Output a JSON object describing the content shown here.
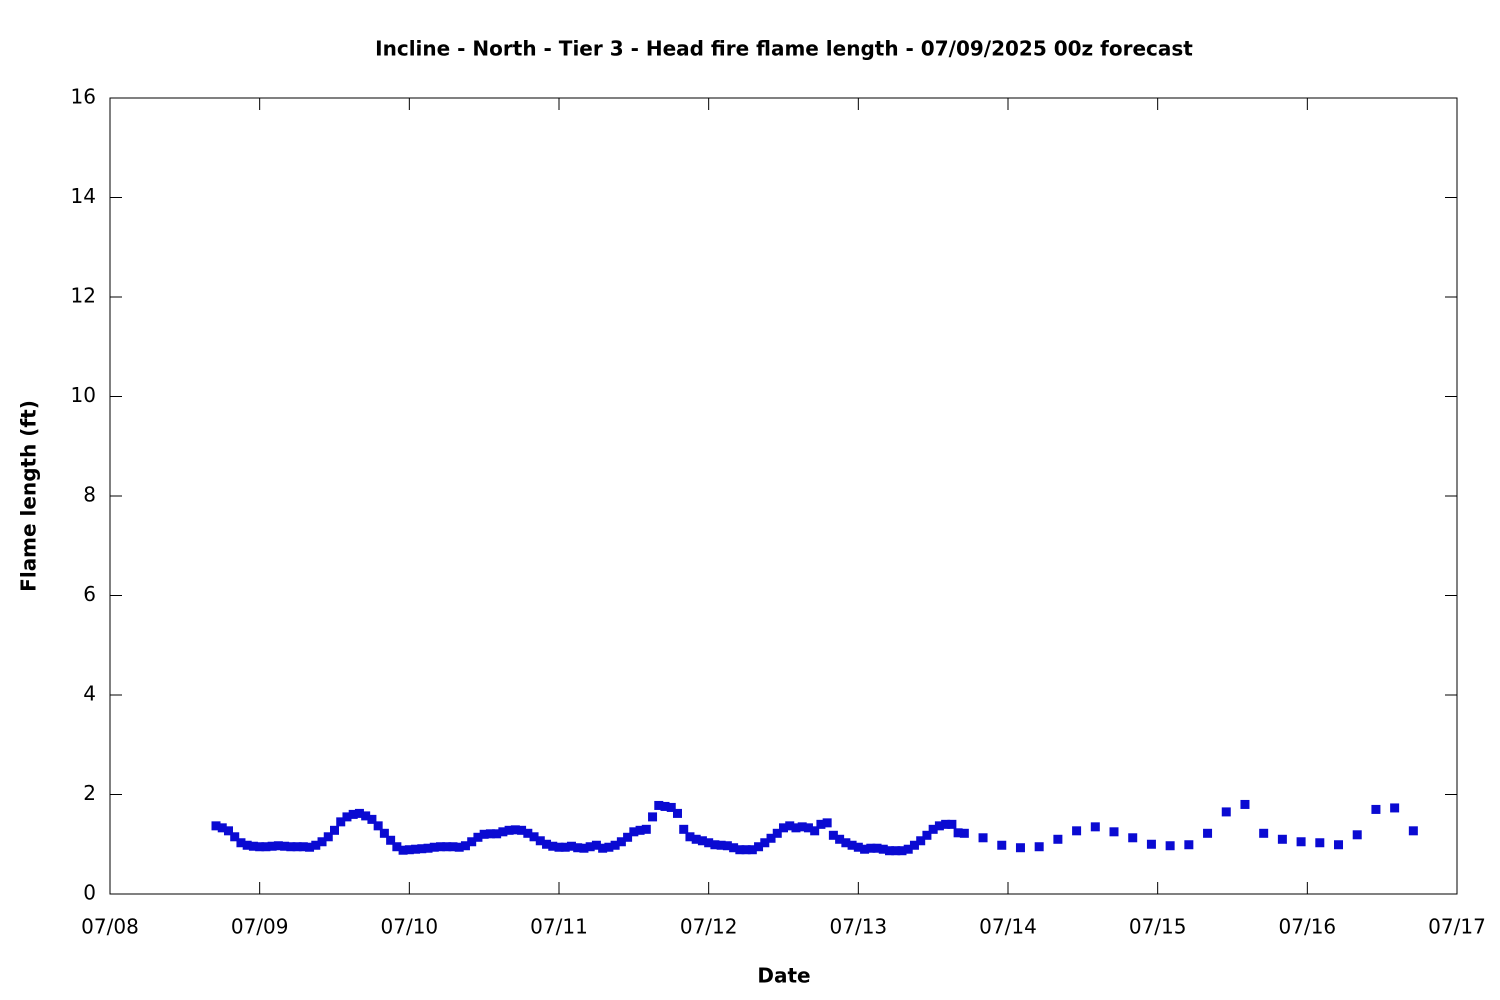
{
  "chart_data": {
    "type": "scatter",
    "title": "Incline - North - Tier 3 - Head fire flame length - 07/09/2025 00z forecast",
    "x_label": "Date",
    "y_label": "Flame length (ft)",
    "xlim": [
      0,
      9
    ],
    "xticks": [
      {
        "value": 0,
        "label": "07/08"
      },
      {
        "value": 1,
        "label": "07/09"
      },
      {
        "value": 2,
        "label": "07/10"
      },
      {
        "value": 3,
        "label": "07/11"
      },
      {
        "value": 4,
        "label": "07/12"
      },
      {
        "value": 5,
        "label": "07/13"
      },
      {
        "value": 6,
        "label": "07/14"
      },
      {
        "value": 7,
        "label": "07/15"
      },
      {
        "value": 8,
        "label": "07/16"
      },
      {
        "value": 9,
        "label": "07/17"
      }
    ],
    "ylim": [
      0,
      16
    ],
    "yticks": [
      0,
      2,
      4,
      6,
      8,
      10,
      12,
      14,
      16
    ],
    "grid": false,
    "series": [
      {
        "color": "#0a0ad2",
        "x": [
          0.7083,
          0.75,
          0.7917,
          0.8333,
          0.875,
          0.9167,
          0.9583,
          1,
          1.0417,
          1.0833,
          1.125,
          1.1667,
          1.2083,
          1.25,
          1.2917,
          1.3333,
          1.375,
          1.4167,
          1.4583,
          1.5,
          1.5417,
          1.5833,
          1.625,
          1.6667,
          1.7083,
          1.75,
          1.7917,
          1.8333,
          1.875,
          1.9167,
          1.9583,
          2,
          2.0417,
          2.0833,
          2.125,
          2.1667,
          2.2083,
          2.25,
          2.2917,
          2.3333,
          2.375,
          2.4167,
          2.4583,
          2.5,
          2.5417,
          2.5833,
          2.625,
          2.6667,
          2.7083,
          2.75,
          2.7917,
          2.8333,
          2.875,
          2.9167,
          2.9583,
          3,
          3.0417,
          3.0833,
          3.125,
          3.1667,
          3.2083,
          3.25,
          3.2917,
          3.3333,
          3.375,
          3.4167,
          3.4583,
          3.5,
          3.5417,
          3.5833,
          3.625,
          3.6667,
          3.7083,
          3.75,
          3.7917,
          3.8333,
          3.875,
          3.9167,
          3.9583,
          4,
          4.0417,
          4.0833,
          4.125,
          4.1667,
          4.2083,
          4.25,
          4.2917,
          4.3333,
          4.375,
          4.4167,
          4.4583,
          4.5,
          4.5417,
          4.5833,
          4.625,
          4.6667,
          4.7083,
          4.75,
          4.7917,
          4.8333,
          4.875,
          4.9167,
          4.9583,
          5,
          5.0417,
          5.0833,
          5.125,
          5.1667,
          5.2083,
          5.25,
          5.2917,
          5.3333,
          5.375,
          5.4167,
          5.4583,
          5.5,
          5.5417,
          5.5833,
          5.625,
          5.6667,
          5.7083,
          5.8333,
          5.9583,
          6.0833,
          6.2083,
          6.3333,
          6.4583,
          6.5833,
          6.7083,
          6.8333,
          6.9583,
          7.0833,
          7.2083,
          7.3333,
          7.4583,
          7.5833,
          7.7083,
          7.8333,
          7.9583,
          8.0833,
          8.2083,
          8.3333,
          8.4583,
          8.5833,
          8.7083
        ],
        "values": [
          1.37,
          1.33,
          1.27,
          1.15,
          1.03,
          0.98,
          0.96,
          0.95,
          0.95,
          0.96,
          0.97,
          0.96,
          0.95,
          0.95,
          0.95,
          0.94,
          0.98,
          1.05,
          1.15,
          1.28,
          1.45,
          1.55,
          1.6,
          1.62,
          1.57,
          1.5,
          1.37,
          1.22,
          1.08,
          0.95,
          0.88,
          0.89,
          0.9,
          0.91,
          0.92,
          0.94,
          0.95,
          0.95,
          0.95,
          0.94,
          0.97,
          1.05,
          1.14,
          1.2,
          1.21,
          1.21,
          1.25,
          1.28,
          1.29,
          1.28,
          1.22,
          1.15,
          1.07,
          1.0,
          0.96,
          0.94,
          0.94,
          0.96,
          0.93,
          0.92,
          0.95,
          0.98,
          0.92,
          0.94,
          0.98,
          1.05,
          1.14,
          1.25,
          1.28,
          1.3,
          1.55,
          1.78,
          1.76,
          1.74,
          1.62,
          1.3,
          1.15,
          1.1,
          1.07,
          1.03,
          0.99,
          0.98,
          0.97,
          0.93,
          0.89,
          0.89,
          0.89,
          0.95,
          1.03,
          1.12,
          1.22,
          1.33,
          1.37,
          1.33,
          1.35,
          1.33,
          1.27,
          1.4,
          1.43,
          1.18,
          1.1,
          1.03,
          0.98,
          0.94,
          0.9,
          0.92,
          0.92,
          0.9,
          0.87,
          0.87,
          0.87,
          0.9,
          0.98,
          1.07,
          1.18,
          1.3,
          1.37,
          1.4,
          1.4,
          1.23,
          1.22,
          1.13,
          0.98,
          0.93,
          0.95,
          1.1,
          1.27,
          1.35,
          1.25,
          1.13,
          1.0,
          0.97,
          0.99,
          1.22,
          1.65,
          1.8,
          1.22,
          1.1,
          1.05,
          1.03,
          0.99,
          1.19,
          1.7,
          1.73,
          1.27
        ]
      }
    ]
  }
}
